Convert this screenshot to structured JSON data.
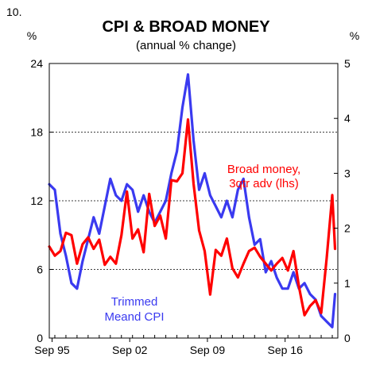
{
  "figure_number": "10.",
  "chart_data": {
    "type": "line",
    "title": "CPI & BROAD MONEY",
    "subtitle": "(annual % change)",
    "left_unit": "%",
    "right_unit": "%",
    "x_tick_labels": [
      "Sep 95",
      "Sep 02",
      "Sep 09",
      "Sep 16"
    ],
    "x_ticks_decimal_year": [
      1995.75,
      2002.75,
      2009.75,
      2016.75
    ],
    "xlim": [
      1995.5,
      2021.5
    ],
    "ylim_left": [
      0,
      24
    ],
    "ylim_right": [
      0,
      5
    ],
    "left_ticks": [
      0,
      6,
      12,
      18,
      24
    ],
    "right_ticks": [
      0,
      1,
      2,
      3,
      4,
      5
    ],
    "grid": "horizontal dotted",
    "series": [
      {
        "name": "Broad money, 3qtr adv (lhs)",
        "color": "#ff0000",
        "axis": "left",
        "x": [
          1995.5,
          1996,
          1996.5,
          1997,
          1997.5,
          1998,
          1998.5,
          1999,
          1999.5,
          2000,
          2000.5,
          2001,
          2001.5,
          2002,
          2002.5,
          2003,
          2003.5,
          2004,
          2004.5,
          2005,
          2005.5,
          2006,
          2006.5,
          2007,
          2007.5,
          2008,
          2008.5,
          2009,
          2009.5,
          2010,
          2010.5,
          2011,
          2011.5,
          2012,
          2012.5,
          2013,
          2013.5,
          2014,
          2014.5,
          2015,
          2015.5,
          2016,
          2016.5,
          2017,
          2017.5,
          2018,
          2018.5,
          2019,
          2019.5,
          2020,
          2020.5,
          2021,
          2021.25
        ],
        "values": [
          8.0,
          7.2,
          7.6,
          9.2,
          9.0,
          6.5,
          8.2,
          8.8,
          7.8,
          8.6,
          6.4,
          7.1,
          6.5,
          9.0,
          12.8,
          8.7,
          9.5,
          7.5,
          12.6,
          9.8,
          10.7,
          8.7,
          13.8,
          13.7,
          14.4,
          19.1,
          13.5,
          9.4,
          7.6,
          3.8,
          7.7,
          7.2,
          8.7,
          6.1,
          5.3,
          6.5,
          7.6,
          7.9,
          7.1,
          6.5,
          5.9,
          6.5,
          7.0,
          5.9,
          7.6,
          4.5,
          2.0,
          2.8,
          3.3,
          2.2,
          7.0,
          12.5,
          7.8
        ]
      },
      {
        "name": "Trimmed Meand CPI",
        "color": "#3a3af0",
        "axis": "right",
        "x": [
          1995.5,
          1996,
          1996.5,
          1997,
          1997.5,
          1998,
          1998.5,
          1999,
          1999.5,
          2000,
          2000.5,
          2001,
          2001.5,
          2002,
          2002.5,
          2003,
          2003.5,
          2004,
          2004.5,
          2005,
          2005.5,
          2006,
          2006.5,
          2007,
          2007.5,
          2008,
          2008.5,
          2009,
          2009.5,
          2010,
          2010.5,
          2011,
          2011.5,
          2012,
          2012.5,
          2013,
          2013.5,
          2014,
          2014.5,
          2015,
          2015.5,
          2016,
          2016.5,
          2017,
          2017.5,
          2018,
          2018.5,
          2019,
          2019.5,
          2020,
          2020.5,
          2021,
          2021.25
        ],
        "values": [
          2.8,
          2.7,
          1.9,
          1.5,
          1.0,
          0.9,
          1.4,
          1.8,
          2.2,
          1.9,
          2.4,
          2.9,
          2.6,
          2.5,
          2.8,
          2.7,
          2.3,
          2.6,
          2.3,
          2.1,
          2.3,
          2.5,
          3.0,
          3.4,
          4.2,
          4.8,
          3.6,
          2.7,
          3.0,
          2.6,
          2.4,
          2.2,
          2.5,
          2.2,
          2.7,
          2.9,
          2.2,
          1.7,
          1.8,
          1.2,
          1.4,
          1.1,
          0.9,
          0.9,
          1.2,
          0.9,
          1.0,
          0.8,
          0.7,
          0.4,
          0.3,
          0.2,
          0.8
        ]
      }
    ],
    "annotations": {
      "broad_money_line1": "Broad money,",
      "broad_money_line2": "3qtr adv (lhs)",
      "cpi_line1": "Trimmed",
      "cpi_line2": "Meand CPI"
    }
  }
}
